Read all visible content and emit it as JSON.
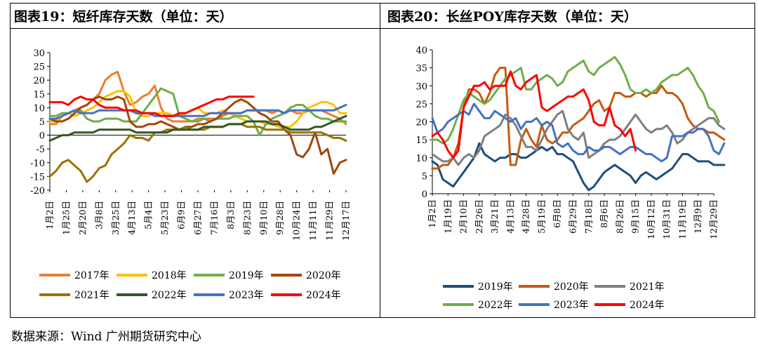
{
  "panel_left": {
    "title": "图表19：短纤库存天数（单位：天）"
  },
  "panel_right": {
    "title": "图表20：长丝POY库存天数（单位：天）"
  },
  "source": "数据来源：Wind  广州期货研究中心",
  "chart_data": [
    {
      "type": "line",
      "title": "图表19：短纤库存天数（单位：天）",
      "ylim": [
        -20,
        30
      ],
      "yticks": [
        -20,
        -15,
        -10,
        -5,
        0,
        5,
        10,
        15,
        20,
        25,
        30
      ],
      "xtick_labels": [
        "1月2日",
        "1月25日",
        "2月20日",
        "3月8日",
        "3月25日",
        "4月13日",
        "5月4日",
        "5月23日",
        "6月9日",
        "6月27日",
        "7月16日",
        "8月3日",
        "8月23日",
        "9月10日",
        "9月28日",
        "10月24日",
        "11月11日",
        "11月29日",
        "12月17日"
      ],
      "x_index_range": [
        0,
        48
      ],
      "series": [
        {
          "name": "2017年",
          "color": "#ED7D31",
          "values": [
            4,
            4,
            7,
            8,
            9,
            10,
            11,
            13,
            15,
            20,
            22,
            23,
            16,
            11,
            12,
            14,
            15,
            18,
            10,
            6,
            5,
            5,
            5,
            5,
            6,
            6,
            6,
            6,
            7,
            8,
            8,
            8,
            9,
            9,
            9,
            9,
            8,
            9,
            8,
            9,
            8,
            8,
            9,
            9,
            9,
            8,
            7,
            6,
            4
          ]
        },
        {
          "name": "2018年",
          "color": "#FFC000",
          "values": [
            5,
            5,
            7,
            8,
            7,
            8,
            9,
            10,
            12,
            14,
            15,
            16,
            16,
            14,
            8,
            7,
            7,
            8,
            8,
            8,
            7,
            7,
            8,
            9,
            10,
            8,
            8,
            8,
            9,
            8,
            7,
            6,
            5,
            5,
            5,
            4,
            4,
            3,
            3,
            3,
            5,
            8,
            10,
            11,
            12,
            12,
            11,
            8,
            8
          ]
        },
        {
          "name": "2019年",
          "color": "#70AD47",
          "values": [
            7,
            7,
            8,
            8,
            9,
            9,
            6,
            5,
            5,
            6,
            6,
            6,
            5,
            5,
            5,
            8,
            11,
            14,
            17,
            16,
            15,
            7,
            6,
            5,
            5,
            6,
            5,
            6,
            6,
            6,
            7,
            7,
            7,
            5,
            0,
            4,
            6,
            7,
            8,
            10,
            11,
            11,
            9,
            7,
            6,
            6,
            5,
            5,
            5
          ]
        },
        {
          "name": "2020年",
          "color": "#9E480E",
          "values": [
            6,
            5,
            5,
            6,
            8,
            10,
            11,
            13,
            14,
            13,
            13,
            14,
            13,
            5,
            3,
            3,
            4,
            4,
            5,
            4,
            3,
            2,
            3,
            3,
            4,
            4,
            5,
            6,
            8,
            10,
            12,
            13,
            12,
            10,
            8,
            7,
            5,
            5,
            2,
            0,
            -7,
            -8,
            -5,
            1,
            -7,
            -5,
            -14,
            -10,
            -9
          ]
        },
        {
          "name": "2021年",
          "color": "#997300",
          "values": [
            -15,
            -13,
            -10,
            -9,
            -11,
            -13,
            -17,
            -15,
            -12,
            -11,
            -7,
            -5,
            -3,
            0,
            -1,
            -1,
            -2,
            1,
            1,
            2,
            2,
            2,
            3,
            2,
            2,
            2,
            3,
            3,
            3,
            4,
            4,
            4,
            3,
            3,
            3,
            2,
            2,
            2,
            2,
            1,
            1,
            1,
            1,
            1,
            1,
            0,
            -1,
            -1,
            -2
          ]
        },
        {
          "name": "2022年",
          "color": "#375623",
          "values": [
            -2,
            -1,
            0,
            0,
            1,
            1,
            1,
            1,
            2,
            2,
            2,
            2,
            2,
            2,
            1,
            1,
            1,
            1,
            1,
            1,
            2,
            2,
            2,
            2,
            2,
            3,
            3,
            3,
            3,
            4,
            4,
            4,
            5,
            5,
            5,
            5,
            4,
            4,
            3,
            2,
            2,
            2,
            2,
            3,
            3,
            4,
            5,
            6,
            7
          ]
        },
        {
          "name": "2023年",
          "color": "#4472C4",
          "values": [
            6,
            6,
            7,
            8,
            9,
            8,
            8,
            8,
            9,
            9,
            9,
            9,
            9,
            9,
            8,
            8,
            8,
            7,
            7,
            7,
            7,
            7,
            7,
            7,
            7,
            7,
            8,
            8,
            8,
            8,
            8,
            8,
            9,
            9,
            9,
            9,
            9,
            9,
            8,
            9,
            9,
            9,
            9,
            9,
            9,
            9,
            9,
            10,
            11
          ]
        },
        {
          "name": "2024年",
          "color": "#FF0000",
          "values": [
            12,
            12,
            12,
            11,
            13,
            14,
            13,
            13,
            11,
            10,
            10,
            10,
            9,
            9,
            9,
            8,
            8,
            8,
            7,
            7,
            7,
            8,
            8,
            9,
            10,
            11,
            12,
            13,
            13,
            14,
            14,
            14,
            14,
            14
          ]
        }
      ]
    },
    {
      "type": "line",
      "title": "图表20：长丝POY库存天数（单位：天）",
      "ylim": [
        0,
        40
      ],
      "yticks": [
        0,
        5,
        10,
        15,
        20,
        25,
        30,
        35,
        40
      ],
      "xtick_labels": [
        "1月2日",
        "1月19日",
        "2月10日",
        "2月26日",
        "3月21日",
        "4月13日",
        "4月28日",
        "5月19日",
        "6月8日",
        "6月29日",
        "7月18日",
        "8月6日",
        "8月26日",
        "9月15日",
        "10月12日",
        "10月31日",
        "11月19日",
        "12月9日",
        "12月29日"
      ],
      "x_index_range": [
        0,
        54
      ],
      "series": [
        {
          "name": "2019年",
          "color": "#1F4E79",
          "values": [
            9,
            8,
            4,
            3,
            2,
            4,
            6,
            8,
            10,
            14,
            11,
            10,
            9,
            10,
            10,
            11,
            11,
            10,
            10,
            11,
            12,
            13,
            12,
            13,
            11,
            11,
            10,
            9,
            6,
            3,
            1,
            2,
            4,
            6,
            7,
            8,
            7,
            6,
            5,
            3,
            5,
            6,
            5,
            4,
            5,
            6,
            7,
            9,
            11,
            11,
            10,
            9,
            9,
            9,
            8,
            8,
            8
          ]
        },
        {
          "name": "2020年",
          "color": "#C55A11",
          "values": [
            7,
            7,
            8,
            8,
            10,
            14,
            24,
            29,
            29,
            28,
            25,
            28,
            33,
            35,
            35,
            8,
            8,
            15,
            18,
            15,
            13,
            19,
            15,
            14,
            15,
            17,
            17,
            19,
            20,
            21,
            23,
            25,
            26,
            23,
            24,
            28,
            28,
            27,
            27,
            28,
            28,
            27,
            28,
            28,
            30,
            28,
            28,
            27,
            25,
            21,
            19,
            18,
            18,
            17,
            17,
            16,
            15
          ]
        },
        {
          "name": "2021年",
          "color": "#7F7F7F",
          "values": [
            11,
            10,
            9,
            9,
            10,
            8,
            10,
            11,
            10,
            12,
            16,
            17,
            18,
            19,
            22,
            21,
            19,
            16,
            13,
            13,
            12,
            15,
            18,
            20,
            22,
            23,
            18,
            16,
            15,
            17,
            10,
            11,
            12,
            14,
            15,
            15,
            16,
            18,
            20,
            22,
            20,
            18,
            17,
            18,
            18,
            19,
            17,
            14,
            15,
            17,
            18,
            19,
            20,
            21,
            21,
            19,
            18
          ]
        },
        {
          "name": "2022年",
          "color": "#70AD47",
          "values": [
            15,
            15,
            14,
            15,
            18,
            22,
            26,
            28,
            27,
            26,
            25,
            26,
            28,
            30,
            32,
            33,
            34,
            35,
            29,
            29,
            31,
            32,
            33,
            32,
            30,
            31,
            34,
            35,
            36,
            37,
            34,
            33,
            35,
            36,
            37,
            38,
            36,
            33,
            29,
            28,
            28,
            29,
            28,
            29,
            31,
            32,
            33,
            33,
            34,
            35,
            33,
            30,
            28,
            24,
            23,
            20
          ]
        },
        {
          "name": "2023年",
          "color": "#4472C4",
          "values": [
            21,
            17,
            18,
            20,
            21,
            22,
            23,
            22,
            25,
            23,
            21,
            21,
            23,
            22,
            21,
            20,
            21,
            18,
            20,
            20,
            21,
            19,
            20,
            19,
            14,
            13,
            14,
            12,
            11,
            11,
            13,
            12,
            12,
            13,
            13,
            12,
            11,
            12,
            13,
            13,
            12,
            11,
            11,
            10,
            9,
            10,
            16,
            16,
            16,
            17,
            17,
            18,
            18,
            16,
            12,
            11,
            14
          ]
        },
        {
          "name": "2024年",
          "color": "#FF0000",
          "values": [
            16,
            17,
            15,
            12,
            10,
            12,
            24,
            27,
            30,
            30,
            31,
            29,
            30,
            30,
            30,
            34,
            30,
            29,
            31,
            32,
            33,
            24,
            23,
            24,
            25,
            26,
            27,
            27,
            28,
            29,
            26,
            20,
            19,
            19,
            24,
            19,
            18,
            16,
            18,
            12
          ]
        }
      ]
    }
  ]
}
